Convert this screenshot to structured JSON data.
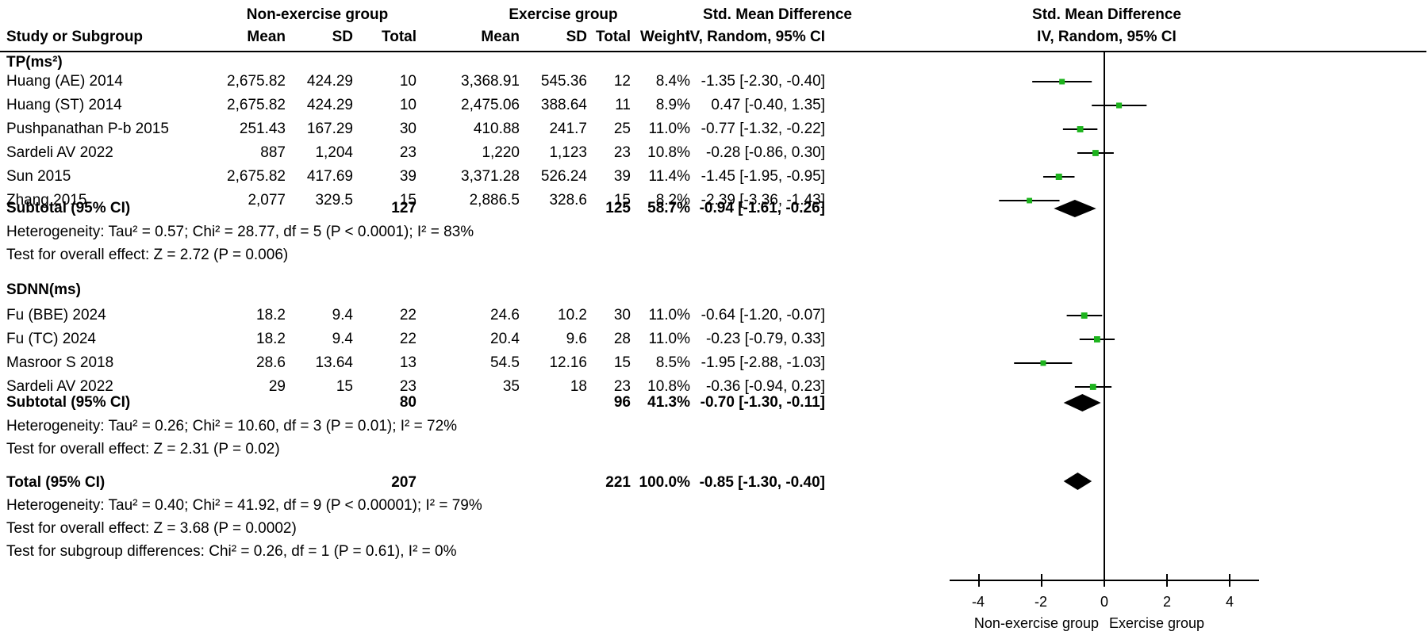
{
  "header": {
    "group1": "Non-exercise group",
    "group2": "Exercise group",
    "effect_col_top": "Std. Mean Difference",
    "effect_col_bottom": "IV, Random, 95% CI",
    "plot_col_top": "Std. Mean Difference",
    "plot_col_bottom": "IV, Random, 95% CI",
    "study": "Study or Subgroup",
    "mean1": "Mean",
    "sd1": "SD",
    "total1": "Total",
    "mean2": "Mean",
    "sd2": "SD",
    "total2": "Total",
    "weight": "Weight"
  },
  "subgroups": [
    {
      "title": "TP(ms²)",
      "studies": [
        {
          "name": "Huang (AE) 2014",
          "mean1": "2,675.82",
          "sd1": "424.29",
          "n1": "10",
          "mean2": "3,368.91",
          "sd2": "545.36",
          "n2": "12",
          "weight": "8.4%",
          "ci": "-1.35 [-2.30, -0.40]"
        },
        {
          "name": "Huang (ST) 2014",
          "mean1": "2,675.82",
          "sd1": "424.29",
          "n1": "10",
          "mean2": "2,475.06",
          "sd2": "388.64",
          "n2": "11",
          "weight": "8.9%",
          "ci": "0.47 [-0.40, 1.35]"
        },
        {
          "name": "Pushpanathan P-b 2015",
          "mean1": "251.43",
          "sd1": "167.29",
          "n1": "30",
          "mean2": "410.88",
          "sd2": "241.7",
          "n2": "25",
          "weight": "11.0%",
          "ci": "-0.77 [-1.32, -0.22]"
        },
        {
          "name": "Sardeli AV 2022",
          "mean1": "887",
          "sd1": "1,204",
          "n1": "23",
          "mean2": "1,220",
          "sd2": "1,123",
          "n2": "23",
          "weight": "10.8%",
          "ci": "-0.28 [-0.86, 0.30]"
        },
        {
          "name": "Sun 2015",
          "mean1": "2,675.82",
          "sd1": "417.69",
          "n1": "39",
          "mean2": "3,371.28",
          "sd2": "526.24",
          "n2": "39",
          "weight": "11.4%",
          "ci": "-1.45 [-1.95, -0.95]"
        },
        {
          "name": "Zhang 2015",
          "mean1": "2,077",
          "sd1": "329.5",
          "n1": "15",
          "mean2": "2,886.5",
          "sd2": "328.6",
          "n2": "15",
          "weight": "8.2%",
          "ci": "-2.39 [-3.36, -1.43]"
        }
      ],
      "subtotal": {
        "label": "Subtotal (95% CI)",
        "n1": "127",
        "n2": "125",
        "weight": "58.7%",
        "ci": "-0.94 [-1.61, -0.26]"
      },
      "heterogeneity": "Heterogeneity: Tau² = 0.57; Chi² = 28.77, df = 5 (P < 0.0001); I² = 83%",
      "overall": "Test for overall effect: Z = 2.72 (P = 0.006)"
    },
    {
      "title": "SDNN(ms)",
      "studies": [
        {
          "name": "Fu (BBE) 2024",
          "mean1": "18.2",
          "sd1": "9.4",
          "n1": "22",
          "mean2": "24.6",
          "sd2": "10.2",
          "n2": "30",
          "weight": "11.0%",
          "ci": "-0.64 [-1.20, -0.07]"
        },
        {
          "name": "Fu (TC) 2024",
          "mean1": "18.2",
          "sd1": "9.4",
          "n1": "22",
          "mean2": "20.4",
          "sd2": "9.6",
          "n2": "28",
          "weight": "11.0%",
          "ci": "-0.23 [-0.79, 0.33]"
        },
        {
          "name": "Masroor S 2018",
          "mean1": "28.6",
          "sd1": "13.64",
          "n1": "13",
          "mean2": "54.5",
          "sd2": "12.16",
          "n2": "15",
          "weight": "8.5%",
          "ci": "-1.95 [-2.88, -1.03]"
        },
        {
          "name": "Sardeli AV 2022",
          "mean1": "29",
          "sd1": "15",
          "n1": "23",
          "mean2": "35",
          "sd2": "18",
          "n2": "23",
          "weight": "10.8%",
          "ci": "-0.36 [-0.94, 0.23]"
        }
      ],
      "subtotal": {
        "label": "Subtotal (95% CI)",
        "n1": "80",
        "n2": "96",
        "weight": "41.3%",
        "ci": "-0.70 [-1.30, -0.11]"
      },
      "heterogeneity": "Heterogeneity: Tau² = 0.26; Chi² = 10.60, df = 3 (P = 0.01); I² = 72%",
      "overall": "Test for overall effect: Z = 2.31 (P = 0.02)"
    }
  ],
  "total": {
    "label": "Total (95% CI)",
    "n1": "207",
    "n2": "221",
    "weight": "100.0%",
    "ci": "-0.85 [-1.30, -0.40]",
    "heterogeneity": "Heterogeneity: Tau² = 0.40; Chi² = 41.92, df = 9 (P < 0.00001); I² = 79%",
    "overall": "Test for overall effect: Z = 3.68 (P = 0.0002)",
    "subgroup_diff": "Test for subgroup differences: Chi² = 0.26, df = 1 (P = 0.61), I² = 0%"
  },
  "axis": {
    "ticks": [
      "-4",
      "-2",
      "0",
      "2",
      "4"
    ],
    "left_label": "Non-exercise group",
    "right_label": "Exercise group"
  },
  "colors": {
    "study_marker": "#1db31d",
    "line": "#000000",
    "diamond": "#000000"
  },
  "chart_data": {
    "type": "forest",
    "title": "Std. Mean Difference IV, Random, 95% CI",
    "xlabel": "Non-exercise group | Exercise group",
    "xlim": [
      -4,
      4
    ],
    "xticks": [
      -4,
      -2,
      0,
      2,
      4
    ],
    "series": [
      {
        "name": "TP(ms²)",
        "studies": [
          {
            "label": "Huang (AE) 2014",
            "est": -1.35,
            "lo": -2.3,
            "hi": -0.4,
            "weight": 8.4
          },
          {
            "label": "Huang (ST) 2014",
            "est": 0.47,
            "lo": -0.4,
            "hi": 1.35,
            "weight": 8.9
          },
          {
            "label": "Pushpanathan P-b 2015",
            "est": -0.77,
            "lo": -1.32,
            "hi": -0.22,
            "weight": 11.0
          },
          {
            "label": "Sardeli AV 2022",
            "est": -0.28,
            "lo": -0.86,
            "hi": 0.3,
            "weight": 10.8
          },
          {
            "label": "Sun 2015",
            "est": -1.45,
            "lo": -1.95,
            "hi": -0.95,
            "weight": 11.4
          },
          {
            "label": "Zhang 2015",
            "est": -2.39,
            "lo": -3.36,
            "hi": -1.43,
            "weight": 8.2
          }
        ],
        "pooled": {
          "est": -0.94,
          "lo": -1.61,
          "hi": -0.26,
          "weight": 58.7
        }
      },
      {
        "name": "SDNN(ms)",
        "studies": [
          {
            "label": "Fu (BBE) 2024",
            "est": -0.64,
            "lo": -1.2,
            "hi": -0.07,
            "weight": 11.0
          },
          {
            "label": "Fu (TC) 2024",
            "est": -0.23,
            "lo": -0.79,
            "hi": 0.33,
            "weight": 11.0
          },
          {
            "label": "Masroor S 2018",
            "est": -1.95,
            "lo": -2.88,
            "hi": -1.03,
            "weight": 8.5
          },
          {
            "label": "Sardeli AV 2022",
            "est": -0.36,
            "lo": -0.94,
            "hi": 0.23,
            "weight": 10.8
          }
        ],
        "pooled": {
          "est": -0.7,
          "lo": -1.3,
          "hi": -0.11,
          "weight": 41.3
        }
      }
    ],
    "overall": {
      "est": -0.85,
      "lo": -1.3,
      "hi": -0.4,
      "weight": 100.0
    }
  }
}
